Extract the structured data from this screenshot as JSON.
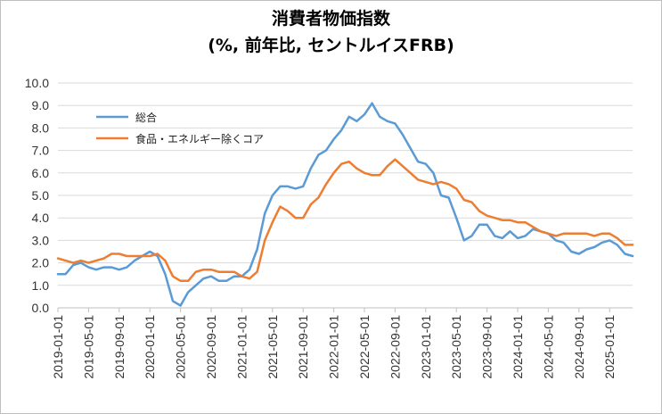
{
  "chart_data": {
    "type": "line",
    "title": "消費者物価指数",
    "subtitle": "(%, 前年比, セントルイスFRB)",
    "ylim": [
      0,
      10
    ],
    "yticks": [
      "0.0",
      "1.0",
      "2.0",
      "3.0",
      "4.0",
      "5.0",
      "6.0",
      "7.0",
      "8.0",
      "9.0",
      "10.0"
    ],
    "xticks": [
      "2019-01-01",
      "2019-05-01",
      "2019-09-01",
      "2020-01-01",
      "2020-05-01",
      "2020-09-01",
      "2021-01-01",
      "2021-05-01",
      "2021-09-01",
      "2022-01-01",
      "2022-05-01",
      "2022-09-01",
      "2023-01-01",
      "2023-05-01",
      "2023-09-01",
      "2024-01-01",
      "2024-05-01",
      "2024-09-01",
      "2025-01-01"
    ],
    "x_start": "2019-01",
    "x_end": "2025-04",
    "grid": true,
    "legend_position": "top-left inside",
    "series": [
      {
        "name": "総合",
        "color": "#5b9bd5",
        "values": [
          1.5,
          1.5,
          1.9,
          2.0,
          1.8,
          1.7,
          1.8,
          1.8,
          1.7,
          1.8,
          2.1,
          2.3,
          2.5,
          2.3,
          1.5,
          0.3,
          0.1,
          0.7,
          1.0,
          1.3,
          1.4,
          1.2,
          1.2,
          1.4,
          1.4,
          1.7,
          2.6,
          4.2,
          5.0,
          5.4,
          5.4,
          5.3,
          5.4,
          6.2,
          6.8,
          7.0,
          7.5,
          7.9,
          8.5,
          8.3,
          8.6,
          9.1,
          8.5,
          8.3,
          8.2,
          7.7,
          7.1,
          6.5,
          6.4,
          6.0,
          5.0,
          4.9,
          4.0,
          3.0,
          3.2,
          3.7,
          3.7,
          3.2,
          3.1,
          3.4,
          3.1,
          3.2,
          3.5,
          3.4,
          3.3,
          3.0,
          2.9,
          2.5,
          2.4,
          2.6,
          2.7,
          2.9,
          3.0,
          2.8,
          2.4,
          2.3
        ]
      },
      {
        "name": "食品・エネルギー除くコア",
        "color": "#ed7d31",
        "values": [
          2.2,
          2.1,
          2.0,
          2.1,
          2.0,
          2.1,
          2.2,
          2.4,
          2.4,
          2.3,
          2.3,
          2.3,
          2.3,
          2.4,
          2.1,
          1.4,
          1.2,
          1.2,
          1.6,
          1.7,
          1.7,
          1.6,
          1.6,
          1.6,
          1.4,
          1.3,
          1.6,
          3.0,
          3.8,
          4.5,
          4.3,
          4.0,
          4.0,
          4.6,
          4.9,
          5.5,
          6.0,
          6.4,
          6.5,
          6.2,
          6.0,
          5.9,
          5.9,
          6.3,
          6.6,
          6.3,
          6.0,
          5.7,
          5.6,
          5.5,
          5.6,
          5.5,
          5.3,
          4.8,
          4.7,
          4.3,
          4.1,
          4.0,
          3.9,
          3.9,
          3.8,
          3.8,
          3.6,
          3.4,
          3.3,
          3.2,
          3.3,
          3.3,
          3.3,
          3.3,
          3.2,
          3.3,
          3.3,
          3.1,
          2.8,
          2.8
        ]
      }
    ]
  }
}
